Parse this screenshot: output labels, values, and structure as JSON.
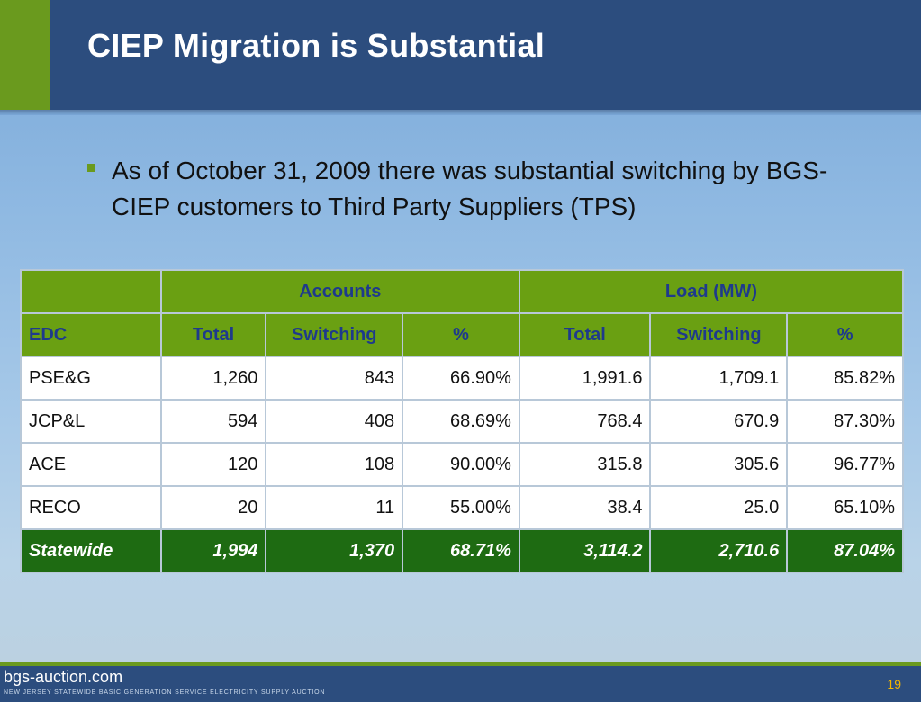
{
  "slide": {
    "title": "CIEP Migration is Substantial",
    "bullet": "As of October 31, 2009 there was substantial switching by BGS-CIEP customers to Third Party Suppliers (TPS)"
  },
  "table": {
    "group_headers": {
      "accounts": "Accounts",
      "load": "Load (MW)"
    },
    "columns": [
      "EDC",
      "Total",
      "Switching",
      "%",
      "Total",
      "Switching",
      "%"
    ],
    "rows": [
      [
        "PSE&G",
        "1,260",
        "843",
        "66.90%",
        "1,991.6",
        "1,709.1",
        "85.82%"
      ],
      [
        "JCP&L",
        "594",
        "408",
        "68.69%",
        "768.4",
        "670.9",
        "87.30%"
      ],
      [
        "ACE",
        "120",
        "108",
        "90.00%",
        "315.8",
        "305.6",
        "96.77%"
      ],
      [
        "RECO",
        "20",
        "11",
        "55.00%",
        "38.4",
        "25.0",
        "65.10%"
      ]
    ],
    "total": [
      "Statewide",
      "1,994",
      "1,370",
      "68.71%",
      "3,114.2",
      "2,710.6",
      "87.04%"
    ]
  },
  "footer": {
    "site": "bgs-auction.com",
    "tagline": "New Jersey Statewide Basic Generation Service Electricity Supply Auction",
    "page": "19"
  },
  "colors": {
    "title_bar": "#2c4d7e",
    "accent_green": "#6a9a1e",
    "header_green": "#6aa012",
    "header_text": "#1e3a8c",
    "total_green": "#1e6b12"
  }
}
